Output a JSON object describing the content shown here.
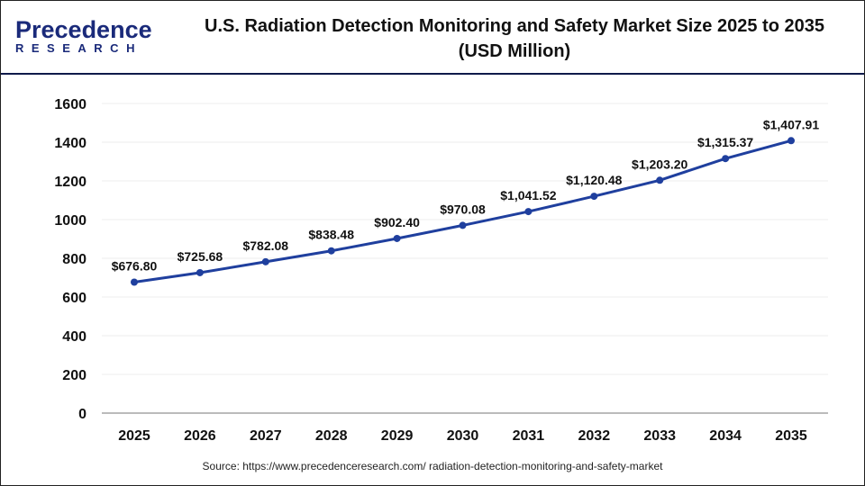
{
  "logo": {
    "line1": "Precedence",
    "line2": "RESEARCH"
  },
  "header": {
    "title_line1": "U.S. Radiation Detection Monitoring and Safety Market Size 2025 to 2035",
    "title_line2": "(USD Million)"
  },
  "source": "Source: https://www.precedenceresearch.com/ radiation-detection-monitoring-and-safety-market",
  "chart_data": {
    "type": "line",
    "title": "U.S. Radiation Detection Monitoring and Safety Market Size 2025 to 2035 (USD Million)",
    "categories": [
      "2025",
      "2026",
      "2027",
      "2028",
      "2029",
      "2030",
      "2031",
      "2032",
      "2033",
      "2034",
      "2035"
    ],
    "values": [
      676.8,
      725.68,
      782.08,
      838.48,
      902.4,
      970.08,
      1041.52,
      1120.48,
      1203.2,
      1315.37,
      1407.91
    ],
    "data_labels": [
      "$676.80",
      "$725.68",
      "$782.08",
      "$838.48",
      "$902.40",
      "$970.08",
      "$1,041.52",
      "$1,120.48",
      "$1,203.20",
      "$1,315.37",
      "$1,407.91"
    ],
    "yticks": [
      "0",
      "200",
      "400",
      "600",
      "800",
      "1000",
      "1200",
      "1400",
      "1600"
    ],
    "ylim": [
      0,
      1600
    ],
    "grid": true,
    "line_color": "#1f3f9e",
    "xlabel": "",
    "ylabel": ""
  }
}
